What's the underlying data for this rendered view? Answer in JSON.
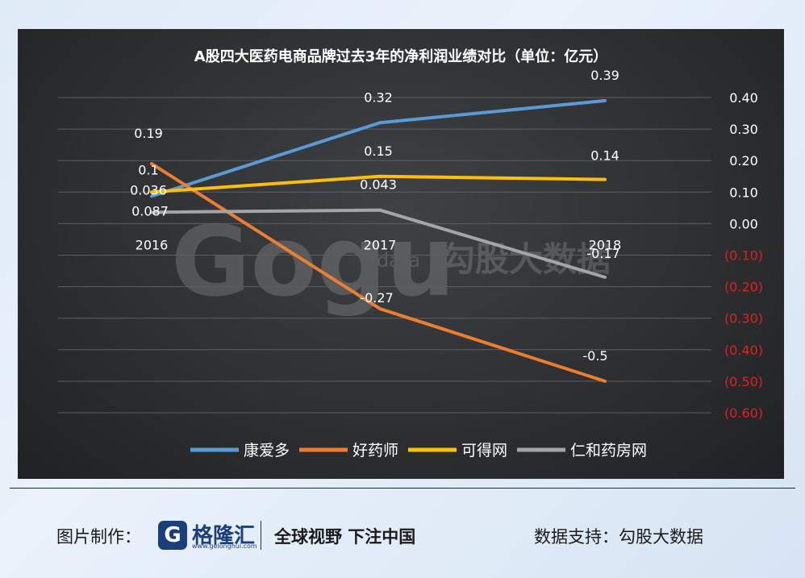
{
  "chart_data": {
    "type": "line",
    "title": "A股四大医药电商品牌过去3年的净利润业绩对比（单位：亿元）",
    "categories": [
      "2016",
      "2017",
      "2018"
    ],
    "series": [
      {
        "name": "康爱多",
        "color": "#5b9bd5",
        "values": [
          0.087,
          0.32,
          0.39
        ],
        "labels": [
          "0.087",
          "0.32",
          "0.39"
        ]
      },
      {
        "name": "好药师",
        "color": "#ed7d31",
        "values": [
          0.19,
          -0.27,
          -0.5
        ],
        "labels": [
          "0.19",
          "-0.27",
          "-0.5"
        ]
      },
      {
        "name": "可得网",
        "color": "#ffc000",
        "values": [
          0.1,
          0.15,
          0.14
        ],
        "labels": [
          "0.1",
          "0.15",
          "0.14"
        ]
      },
      {
        "name": "仁和药房网",
        "color": "#a5a5a5",
        "values": [
          0.036,
          0.043,
          -0.17
        ],
        "labels": [
          "0.036",
          "0.043",
          "-0.17"
        ]
      }
    ],
    "y_ticks": [
      {
        "value": 0.4,
        "label": "0.40"
      },
      {
        "value": 0.3,
        "label": "0.30"
      },
      {
        "value": 0.2,
        "label": "0.20"
      },
      {
        "value": 0.1,
        "label": "0.10"
      },
      {
        "value": 0,
        "label": "0.00"
      },
      {
        "value": -0.1,
        "label": "(0.10)"
      },
      {
        "value": -0.2,
        "label": "(0.20)"
      },
      {
        "value": -0.3,
        "label": "(0.30)"
      },
      {
        "value": -0.4,
        "label": "(0.40)"
      },
      {
        "value": -0.5,
        "label": "(0.50)"
      },
      {
        "value": -0.6,
        "label": "(0.60)"
      }
    ],
    "ylim": [
      -0.6,
      0.4
    ],
    "y_axis_side": "right",
    "grid": true,
    "legend_position": "bottom",
    "colors": {
      "positive_tick": "#ffffff",
      "negative_tick": "#e02020",
      "grid": "#5c5f62"
    }
  },
  "watermark": {
    "logo_text": "Gogu",
    "sub": "data",
    "cn": "勾股大数据"
  },
  "footer": {
    "credit_label": "图片制作：",
    "brand_name": "格隆汇",
    "brand_url": "www.gelonghui.com",
    "slogan": "全球视野 下注中国",
    "source_label": "数据支持：勾股大数据"
  }
}
